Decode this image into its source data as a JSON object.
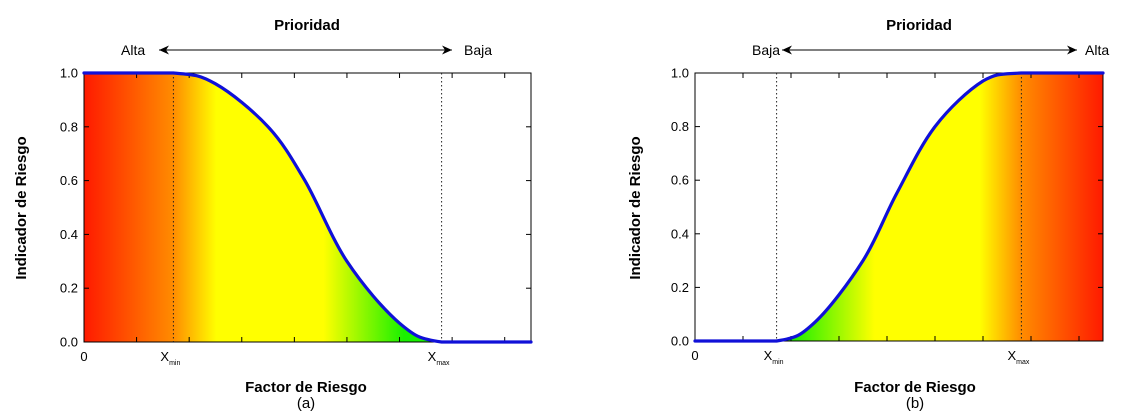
{
  "colors": {
    "curve": "#1010d8",
    "red": "#ff1a00",
    "orange": "#ff8c00",
    "yellow": "#ffff00",
    "green": "#19f000"
  },
  "chart_data": [
    {
      "type": "line",
      "caption": "(a)",
      "direction": "decreasing",
      "priority_title": "Prioridad",
      "left_label": "Alta",
      "right_label": "Baja",
      "ylabel": "Indicador de Riesgo",
      "xlabel": "Factor de Riesgo",
      "ylim": [
        0,
        1
      ],
      "xlim": [
        0,
        8.5
      ],
      "y_ticks": [
        "0.0",
        "0.2",
        "0.4",
        "0.6",
        "0.8",
        "1.0"
      ],
      "x_tick_labels": [
        {
          "x": 0,
          "main": "0",
          "sub": ""
        },
        {
          "x": 1.7,
          "main": "X",
          "sub": "min"
        },
        {
          "x": 6.8,
          "main": "X",
          "sub": "max"
        }
      ],
      "x_min": 1.7,
      "x_max": 6.8,
      "series": [
        {
          "x": [
            0,
            1.7,
            2.5,
            3.5,
            4.2,
            5.0,
            6.0,
            6.8,
            8.5
          ],
          "y": [
            1.0,
            1.0,
            0.96,
            0.8,
            0.6,
            0.3,
            0.07,
            0.0,
            0.0
          ]
        }
      ]
    },
    {
      "type": "line",
      "caption": "(b)",
      "direction": "increasing",
      "priority_title": "Prioridad",
      "left_label": "Baja",
      "right_label": "Alta",
      "ylabel": "Indicador de Riesgo",
      "xlabel": "Factor de Riesgo",
      "ylim": [
        0,
        1
      ],
      "xlim": [
        0,
        8.5
      ],
      "y_ticks": [
        "0.0",
        "0.2",
        "0.4",
        "0.6",
        "0.8",
        "1.0"
      ],
      "x_tick_labels": [
        {
          "x": 0,
          "main": "0",
          "sub": ""
        },
        {
          "x": 1.7,
          "main": "X",
          "sub": "min"
        },
        {
          "x": 6.8,
          "main": "X",
          "sub": "max"
        }
      ],
      "x_min": 1.7,
      "x_max": 6.8,
      "series": [
        {
          "x": [
            0,
            1.7,
            2.5,
            3.5,
            4.2,
            5.0,
            6.0,
            6.8,
            8.5
          ],
          "y": [
            0.0,
            0.0,
            0.07,
            0.3,
            0.55,
            0.8,
            0.97,
            1.0,
            1.0
          ]
        }
      ]
    }
  ]
}
